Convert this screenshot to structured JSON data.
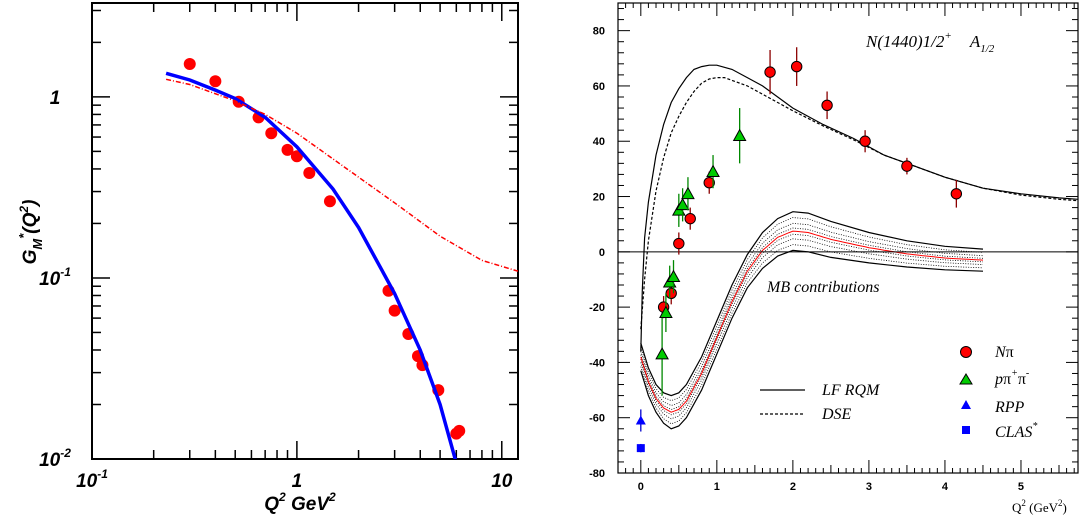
{
  "chart_data": [
    {
      "type": "scatter",
      "title": "",
      "xlabel": {
        "main": "Q",
        "sup": "2",
        "unit": " GeV",
        "unit_sup": "2"
      },
      "ylabel": {
        "main": "G",
        "sub": "M",
        "star": "*",
        "paren": "(Q",
        "sup": "2",
        "close": ")"
      },
      "x_scale": "log",
      "y_scale": "log",
      "xlim": [
        0.1,
        12
      ],
      "ylim": [
        0.01,
        3.3
      ],
      "x_ticks": [
        {
          "base": "10",
          "exp": "-1",
          "value": 0.1
        },
        {
          "base": "1",
          "exp": "",
          "value": 1
        },
        {
          "base": "10",
          "exp": "",
          "value": 10
        }
      ],
      "y_ticks": [
        {
          "base": "10",
          "exp": "-2",
          "value": 0.01
        },
        {
          "base": "10",
          "exp": "-1",
          "value": 0.1
        },
        {
          "base": "1",
          "exp": "",
          "value": 1
        }
      ],
      "series": [
        {
          "kind": "points",
          "color": "#ff0000",
          "points": [
            [
              0.3,
              1.52
            ],
            [
              0.4,
              1.22
            ],
            [
              0.52,
              0.94
            ],
            [
              0.65,
              0.77
            ],
            [
              0.75,
              0.63
            ],
            [
              0.9,
              0.51
            ],
            [
              1.0,
              0.47
            ],
            [
              1.15,
              0.38
            ],
            [
              1.45,
              0.265
            ],
            [
              2.8,
              0.085
            ],
            [
              3.0,
              0.066
            ],
            [
              3.5,
              0.049
            ],
            [
              3.9,
              0.037
            ],
            [
              4.1,
              0.033
            ],
            [
              4.9,
              0.024
            ],
            [
              6.0,
              0.0138
            ],
            [
              6.2,
              0.0143
            ]
          ]
        },
        {
          "kind": "curve",
          "color": "#0000ff",
          "style": "solid",
          "points": [
            [
              0.23,
              1.35
            ],
            [
              0.3,
              1.24
            ],
            [
              0.4,
              1.09
            ],
            [
              0.5,
              0.98
            ],
            [
              0.7,
              0.77
            ],
            [
              1.0,
              0.53
            ],
            [
              1.5,
              0.31
            ],
            [
              2.0,
              0.19
            ],
            [
              3.0,
              0.082
            ],
            [
              4.0,
              0.04
            ],
            [
              5.0,
              0.02
            ],
            [
              6.0,
              0.0095
            ]
          ]
        },
        {
          "kind": "curve",
          "color": "#ff0000",
          "style": "dashdot",
          "points": [
            [
              0.23,
              1.25
            ],
            [
              0.3,
              1.17
            ],
            [
              0.5,
              0.95
            ],
            [
              0.7,
              0.8
            ],
            [
              1.0,
              0.63
            ],
            [
              2.0,
              0.36
            ],
            [
              3.0,
              0.26
            ],
            [
              5.0,
              0.17
            ],
            [
              8.0,
              0.125
            ],
            [
              12.0,
              0.109
            ]
          ]
        }
      ]
    },
    {
      "type": "scatter",
      "title": {
        "state": "N(1440)1/2",
        "state_sup": "+",
        "amp": "A",
        "amp_sub": "1/2"
      },
      "xlabel": {
        "a": "Q",
        "sup": "2",
        "b": " (GeV",
        "sup2": "2",
        "c": ")"
      },
      "ylabel": "",
      "xlim": [
        -0.3,
        5.75
      ],
      "ylim": [
        -80,
        90
      ],
      "x_ticks": [
        "0",
        "1",
        "2",
        "3",
        "4",
        "5"
      ],
      "y_ticks": [
        "-80",
        "-60",
        "-40",
        "-20",
        "0",
        "20",
        "40",
        "60",
        "80"
      ],
      "annotation": "MB contributions",
      "legend": {
        "placement": "bottom-right",
        "lines": [
          {
            "label": "LF RQM",
            "style": "solid"
          },
          {
            "label": "DSE",
            "style": "dashed"
          }
        ],
        "markers": [
          {
            "label": "N",
            "label_greek": "π",
            "marker": "circle",
            "color": "#ff0000"
          },
          {
            "label": "p",
            "label_greek": "π",
            "sup1": "+",
            "label_greek2": "π",
            "sup2": "-",
            "marker": "triangle",
            "color": "#00cc00"
          },
          {
            "label": "RPP",
            "marker": "triangle",
            "color": "#0000ff"
          },
          {
            "label": "CLAS",
            "sup": "*",
            "marker": "square",
            "color": "#0000ff"
          }
        ]
      },
      "series": [
        {
          "name": "Nπ",
          "marker": "circle",
          "color": "#ff0000",
          "points": [
            [
              0.3,
              -20,
              4
            ],
            [
              0.4,
              -15,
              4
            ],
            [
              0.5,
              3,
              4
            ],
            [
              0.65,
              12,
              4
            ],
            [
              0.9,
              25,
              4
            ],
            [
              1.7,
              65,
              8
            ],
            [
              2.05,
              67,
              7
            ],
            [
              2.45,
              53,
              5
            ],
            [
              2.95,
              40,
              4
            ],
            [
              3.5,
              31,
              3
            ],
            [
              4.15,
              21,
              5
            ]
          ]
        },
        {
          "name": "pπ+π-",
          "marker": "triangle",
          "color": "#00cc00",
          "points": [
            [
              0.28,
              -37,
              15
            ],
            [
              0.33,
              -22,
              7
            ],
            [
              0.38,
              -11,
              6
            ],
            [
              0.43,
              -9,
              6
            ],
            [
              0.5,
              15,
              6
            ],
            [
              0.55,
              17,
              6
            ],
            [
              0.62,
              21,
              6
            ],
            [
              0.95,
              29,
              6
            ],
            [
              1.3,
              42,
              10
            ]
          ]
        },
        {
          "name": "RPP",
          "marker": "triangle",
          "color": "#0000ff",
          "points": [
            [
              0.0,
              -61,
              4
            ]
          ]
        },
        {
          "name": "CLAS*",
          "marker": "square",
          "color": "#0000ff",
          "points": [
            [
              0.0,
              -71,
              1.5
            ]
          ]
        },
        {
          "name": "LF RQM",
          "kind": "curve",
          "style": "solid",
          "points": [
            [
              0,
              -36
            ],
            [
              0.02,
              -14
            ],
            [
              0.05,
              5
            ],
            [
              0.1,
              18
            ],
            [
              0.2,
              35
            ],
            [
              0.3,
              46
            ],
            [
              0.4,
              54
            ],
            [
              0.5,
              59
            ],
            [
              0.6,
              63
            ],
            [
              0.7,
              66
            ],
            [
              0.8,
              67
            ],
            [
              0.9,
              67.5
            ],
            [
              1.0,
              67.5
            ],
            [
              1.2,
              66
            ],
            [
              1.4,
              63
            ],
            [
              1.6,
              60
            ],
            [
              1.8,
              56
            ],
            [
              2.0,
              52
            ],
            [
              2.4,
              46
            ],
            [
              2.8,
              41
            ],
            [
              3.2,
              35
            ],
            [
              3.6,
              31
            ],
            [
              4.0,
              27
            ],
            [
              4.5,
              23
            ],
            [
              5.0,
              21
            ],
            [
              5.5,
              19.5
            ],
            [
              5.75,
              19
            ]
          ]
        },
        {
          "name": "DSE",
          "kind": "curve",
          "style": "dashed",
          "points": [
            [
              0,
              -28
            ],
            [
              0.05,
              -10
            ],
            [
              0.1,
              4
            ],
            [
              0.2,
              22
            ],
            [
              0.3,
              34
            ],
            [
              0.4,
              43
            ],
            [
              0.5,
              49
            ],
            [
              0.6,
              54
            ],
            [
              0.7,
              58
            ],
            [
              0.8,
              61
            ],
            [
              0.9,
              62.5
            ],
            [
              1.0,
              63
            ],
            [
              1.1,
              63
            ],
            [
              1.2,
              62
            ],
            [
              1.4,
              60
            ],
            [
              1.6,
              57
            ],
            [
              1.8,
              54
            ],
            [
              2.0,
              51
            ],
            [
              2.4,
              45.5
            ],
            [
              2.8,
              40.5
            ],
            [
              3.2,
              35
            ],
            [
              3.6,
              31
            ],
            [
              4.0,
              27
            ],
            [
              4.5,
              23
            ],
            [
              5.0,
              20.5
            ],
            [
              5.5,
              19
            ],
            [
              5.75,
              18.5
            ]
          ]
        },
        {
          "name": "MB upper",
          "kind": "curve",
          "style": "solid",
          "points": [
            [
              0,
              -33
            ],
            [
              0.1,
              -42
            ],
            [
              0.2,
              -48
            ],
            [
              0.3,
              -51
            ],
            [
              0.4,
              -52
            ],
            [
              0.5,
              -51
            ],
            [
              0.6,
              -48
            ],
            [
              0.8,
              -38
            ],
            [
              1.0,
              -25
            ],
            [
              1.2,
              -12
            ],
            [
              1.4,
              -1
            ],
            [
              1.6,
              7
            ],
            [
              1.8,
              12
            ],
            [
              2.0,
              14.5
            ],
            [
              2.2,
              14
            ],
            [
              2.5,
              11
            ],
            [
              3.0,
              7
            ],
            [
              3.5,
              4
            ],
            [
              4.0,
              2
            ],
            [
              4.5,
              1
            ]
          ]
        },
        {
          "name": "MB lower",
          "kind": "curve",
          "style": "solid",
          "points": [
            [
              0,
              -43
            ],
            [
              0.1,
              -52
            ],
            [
              0.2,
              -58
            ],
            [
              0.3,
              -62
            ],
            [
              0.4,
              -64
            ],
            [
              0.5,
              -63
            ],
            [
              0.6,
              -60
            ],
            [
              0.8,
              -50
            ],
            [
              1.0,
              -37
            ],
            [
              1.2,
              -24
            ],
            [
              1.4,
              -13
            ],
            [
              1.6,
              -6
            ],
            [
              1.8,
              -1.5
            ],
            [
              2.0,
              0.5
            ],
            [
              2.2,
              0
            ],
            [
              2.5,
              -2
            ],
            [
              3.0,
              -4
            ],
            [
              3.5,
              -5.5
            ],
            [
              4.0,
              -6.5
            ],
            [
              4.5,
              -7
            ]
          ]
        }
      ]
    }
  ]
}
